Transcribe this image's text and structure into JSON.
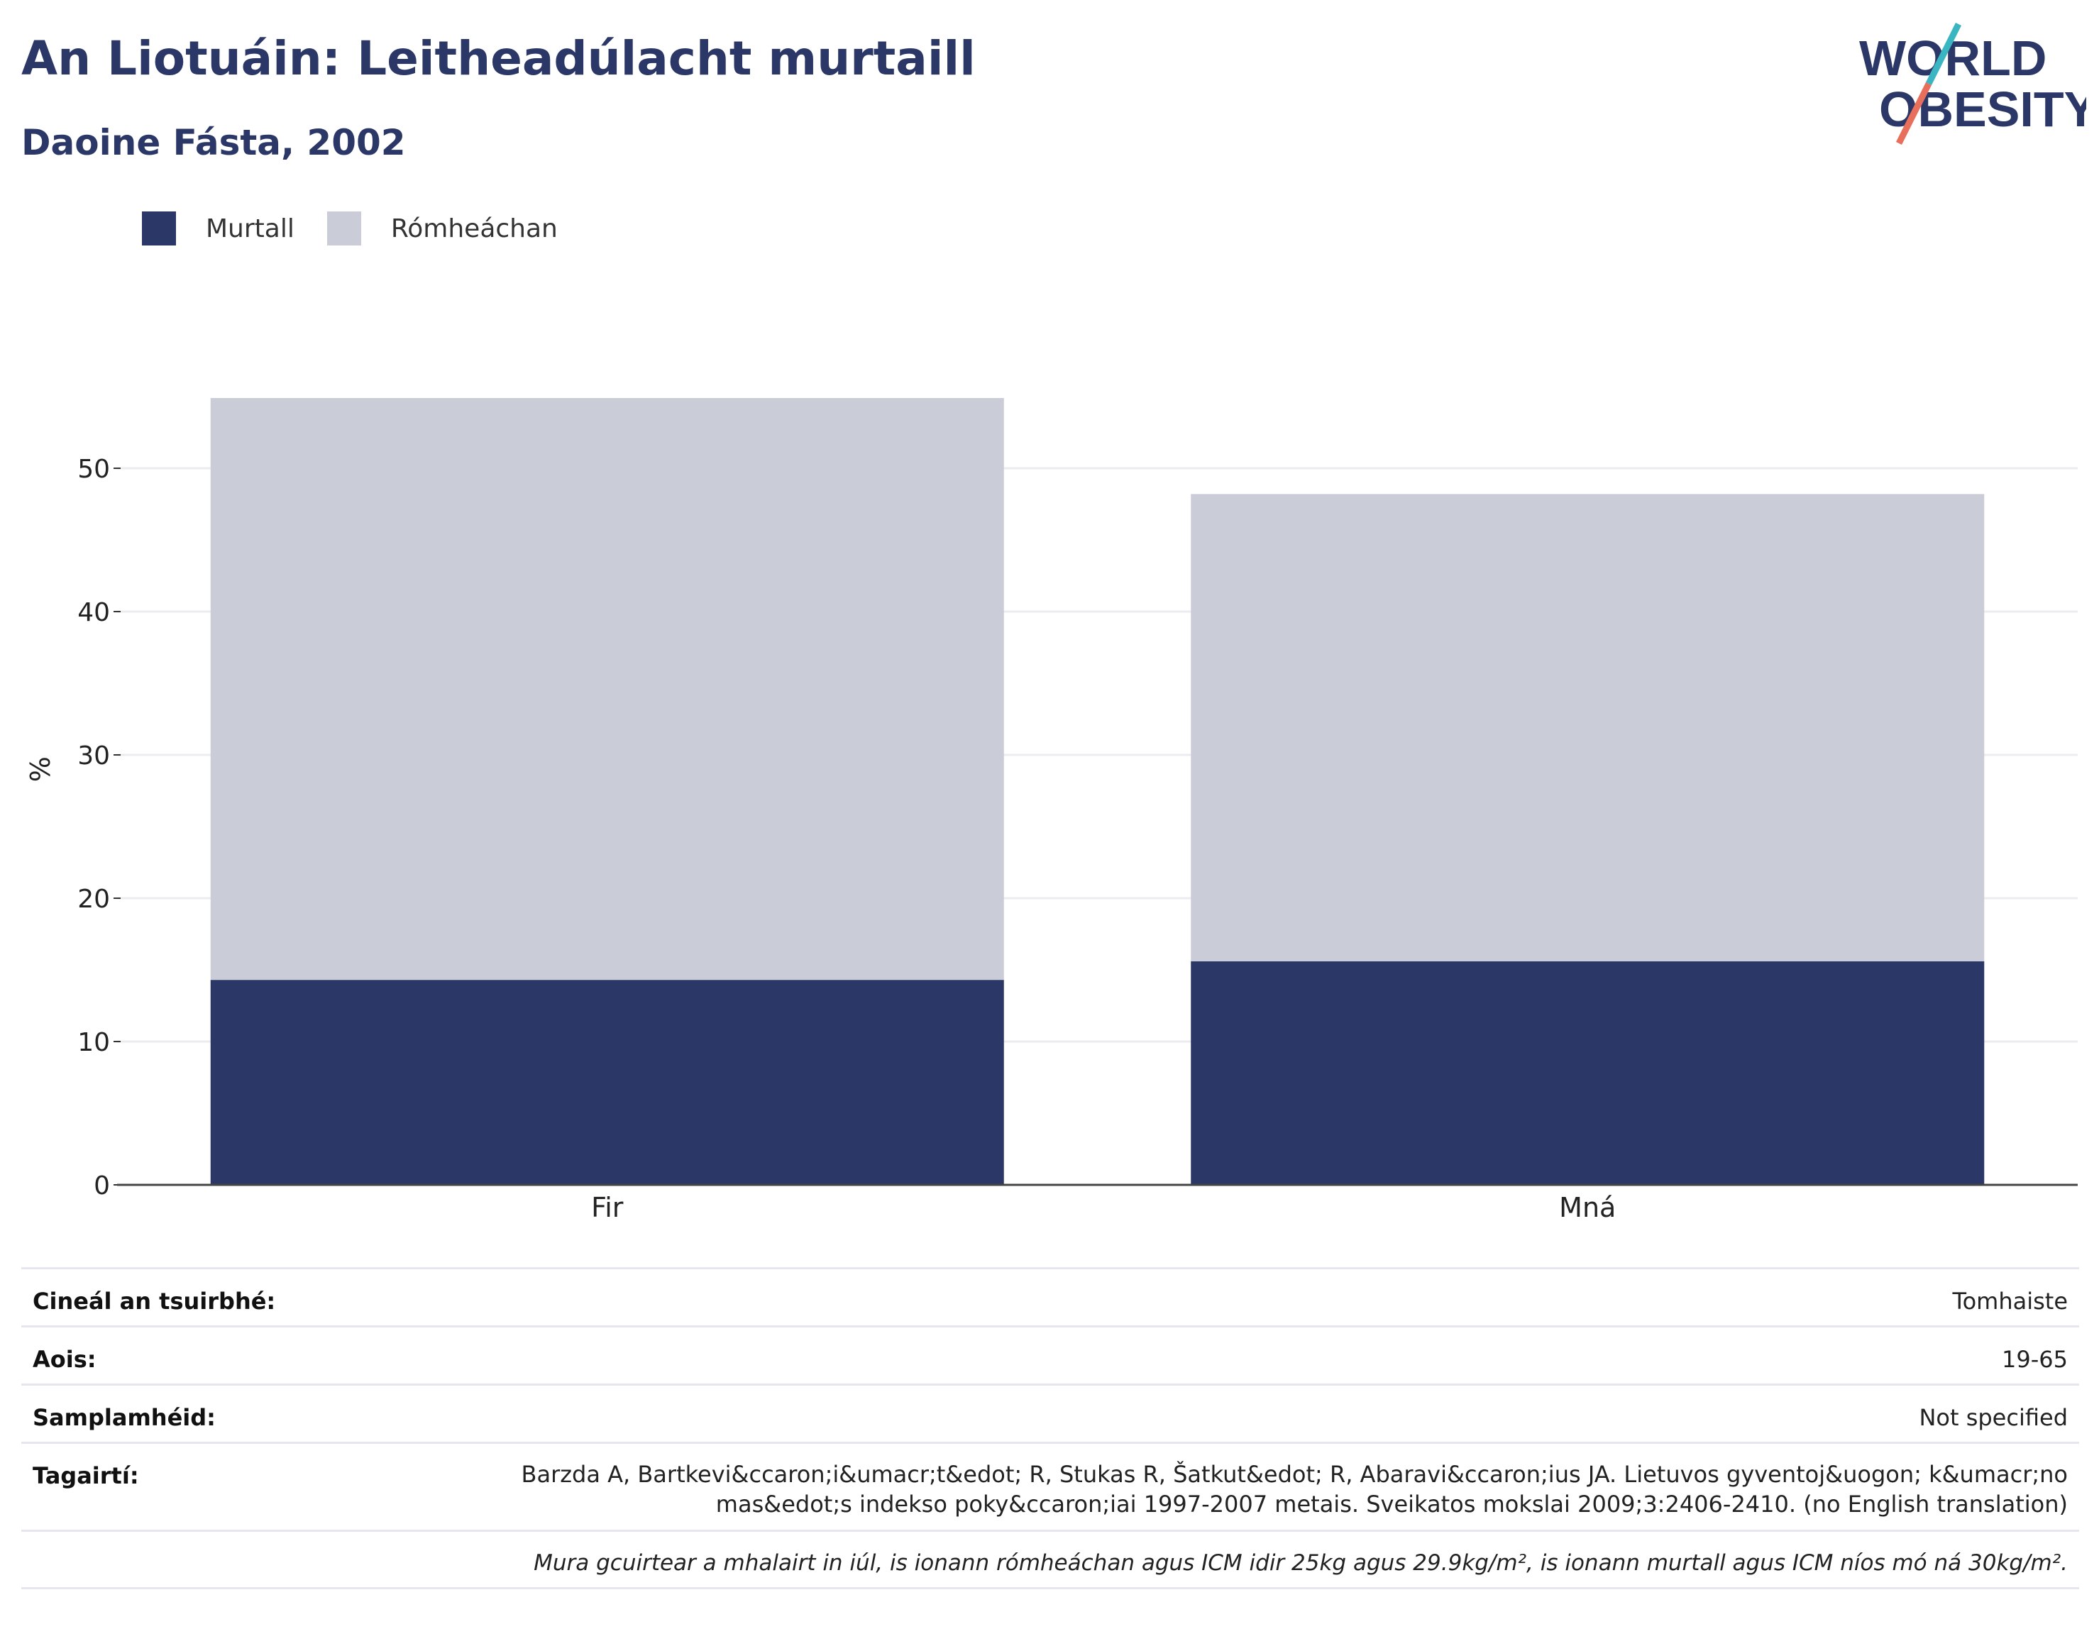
{
  "header": {
    "title": "An Liotuáin: Leitheadúlacht murtaill",
    "subtitle": "Daoine Fásta, 2002"
  },
  "logo": {
    "line1": "WORLD",
    "line2": "OBESITY",
    "colors": {
      "text": "#2b3766",
      "teal": "#3ab6c2",
      "coral": "#e76f5c"
    }
  },
  "legend": [
    {
      "label": "Murtall",
      "color": "#2b3766"
    },
    {
      "label": "Rómheáchan",
      "color": "#caccd8"
    }
  ],
  "chart_data": {
    "type": "bar",
    "stacked": true,
    "categories": [
      "Fir",
      "Mná"
    ],
    "series": [
      {
        "name": "Murtall",
        "values": [
          14.3,
          15.6
        ],
        "color": "#2b3766"
      },
      {
        "name": "Rómheáchan",
        "values": [
          40.6,
          32.6
        ],
        "color": "#caccd8"
      }
    ],
    "ylabel": "%",
    "ylim": [
      0,
      55
    ],
    "yticks": [
      0,
      10,
      20,
      30,
      40,
      50
    ],
    "grid": true,
    "legend_position": "top-left"
  },
  "meta": {
    "survey_type": {
      "label": "Cineál an tsuirbhé:",
      "value": "Tomhaiste"
    },
    "age": {
      "label": "Aois:",
      "value": "19-65"
    },
    "sample_size": {
      "label": "Samplamhéid:",
      "value": "Not specified"
    },
    "references": {
      "label": "Tagairtí:",
      "value": "Barzda A, Bartkevi&ccaron;i&umacr;t&edot; R, Stukas R, Šatkut&edot; R, Abaravi&ccaron;ius JA. Lietuvos gyventoj&uogon; k&umacr;no mas&edot;s indekso poky&ccaron;iai 1997-2007 metais. Sveikatos mokslai 2009;3:2406-2410. (no English translation)"
    },
    "note": "Mura gcuirtear a mhalairt in iúl, is ionann rómheáchan agus ICM idir 25kg agus 29.9kg/m², is ionann murtall agus ICM níos mó ná 30kg/m²."
  }
}
